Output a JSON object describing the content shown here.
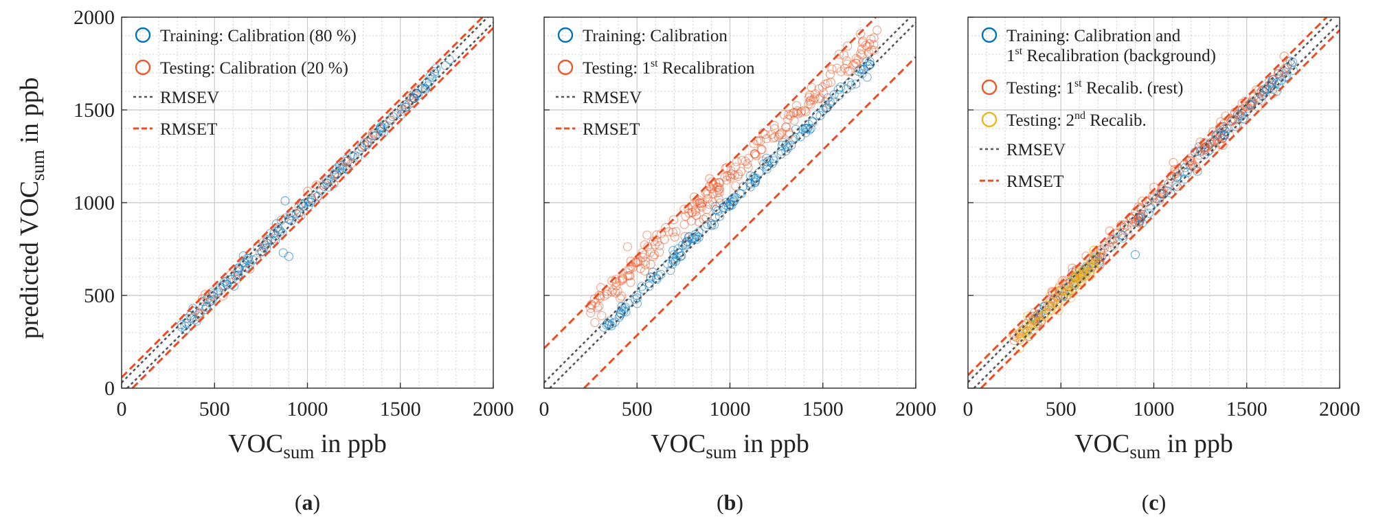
{
  "chart_data": [
    {
      "type": "scatter",
      "panel_label": "a",
      "xlabel": {
        "main": "VOC",
        "sub": "sum",
        "rest": " in ppb"
      },
      "ylabel": {
        "main": "predicted VOC",
        "sub": "sum",
        "rest": " in ppb"
      },
      "xlim": [
        0,
        2000
      ],
      "ylim": [
        0,
        2000
      ],
      "xticks": [
        "0",
        "500",
        "1000",
        "1500",
        "2000"
      ],
      "yticks": [
        "0",
        "500",
        "1000",
        "1500",
        "2000"
      ],
      "grid": true,
      "legend_position": "top-left",
      "series": [
        {
          "name": "Training: Calibration (80 %)",
          "marker": "circle",
          "color": "#0072bd",
          "x_range": [
            320,
            1780
          ],
          "slope": 1.0,
          "offset": 0,
          "noise": 20,
          "count": 170
        },
        {
          "name": "Testing: Calibration (20 %)",
          "marker": "circle",
          "color": "#ee5527",
          "x_range": [
            360,
            1650
          ],
          "slope": 1.0,
          "offset": 0,
          "noise": 22,
          "count": 55
        }
      ],
      "outliers": [
        [
          880,
          1010
        ],
        [
          900,
          710
        ],
        [
          870,
          730
        ]
      ],
      "reference_lines": [
        {
          "name": "RMSEV",
          "style": "dotted",
          "color": "#555555",
          "offsets": [
            -30,
            30
          ]
        },
        {
          "name": "RMSET",
          "style": "dashed",
          "color": "#ee4b20",
          "offsets": [
            -58,
            58
          ]
        }
      ]
    },
    {
      "type": "scatter",
      "panel_label": "b",
      "xlabel": {
        "main": "VOC",
        "sub": "sum",
        "rest": " in ppb"
      },
      "xlim": [
        0,
        2000
      ],
      "ylim": [
        0,
        2000
      ],
      "xticks": [
        "0",
        "500",
        "1000",
        "1500",
        "2000"
      ],
      "grid": true,
      "legend_position": "top-left",
      "series": [
        {
          "name": "Training: Calibration",
          "marker": "circle",
          "color": "#0072bd",
          "x_range": [
            320,
            1780
          ],
          "slope": 1.0,
          "offset": 0,
          "noise": 20,
          "count": 170
        },
        {
          "name": "Testing: 1st Recalibration",
          "marker": "circle",
          "color": "#ee5527",
          "x_range": [
            240,
            1800
          ],
          "slope": 0.95,
          "offset": 190,
          "noise": 45,
          "count": 240
        }
      ],
      "legend_superscripts": {
        "1": {
          "before": "Testing: 1",
          "sup": "st",
          "after": " Recalibration"
        }
      },
      "reference_lines": [
        {
          "name": "RMSEV",
          "style": "dotted",
          "color": "#555555",
          "offsets": [
            -30,
            30
          ]
        },
        {
          "name": "RMSET",
          "style": "dashed",
          "color": "#ee4b20",
          "offsets": [
            -215,
            215
          ]
        }
      ]
    },
    {
      "type": "scatter",
      "panel_label": "c",
      "xlabel": {
        "main": "VOC",
        "sub": "sum",
        "rest": " in ppb"
      },
      "xlim": [
        0,
        2000
      ],
      "ylim": [
        0,
        2000
      ],
      "xticks": [
        "0",
        "500",
        "1000",
        "1500",
        "2000"
      ],
      "grid": true,
      "legend_position": "top-left",
      "series": [
        {
          "name": "Training: Calibration and 1st Recalibration (background)",
          "marker": "circle",
          "color": "#0072bd",
          "x_range": [
            300,
            1750
          ],
          "slope": 1.0,
          "offset": 0,
          "noise": 22,
          "count": 170
        },
        {
          "name": "Testing: 1st Recalib. (rest)",
          "marker": "circle",
          "color": "#ee5527",
          "x_range": [
            240,
            1720
          ],
          "slope": 1.0,
          "offset": 20,
          "noise": 32,
          "count": 200
        },
        {
          "name": "Testing: 2nd Recalib.",
          "marker": "circle",
          "color": "#f2b21c",
          "x_range": [
            250,
            700
          ],
          "slope": 1.0,
          "offset": 0,
          "noise": 30,
          "count": 110
        }
      ],
      "outliers": [
        [
          900,
          720
        ]
      ],
      "legend_lines": [
        [
          {
            "before": "Training: Calibration and",
            "sup": "",
            "after": ""
          },
          {
            "before": "1",
            "sup": "st",
            "after": " Recalibration (background)"
          }
        ],
        [
          {
            "before": "Testing: 1",
            "sup": "st",
            "after": " Recalib. (rest)"
          }
        ],
        [
          {
            "before": "Testing: 2",
            "sup": "nd",
            "after": " Recalib."
          }
        ]
      ],
      "reference_lines": [
        {
          "name": "RMSEV",
          "style": "dotted",
          "color": "#555555",
          "offsets": [
            -32,
            32
          ]
        },
        {
          "name": "RMSET",
          "style": "dashed",
          "color": "#ee4b20",
          "offsets": [
            -70,
            70
          ]
        }
      ]
    }
  ]
}
